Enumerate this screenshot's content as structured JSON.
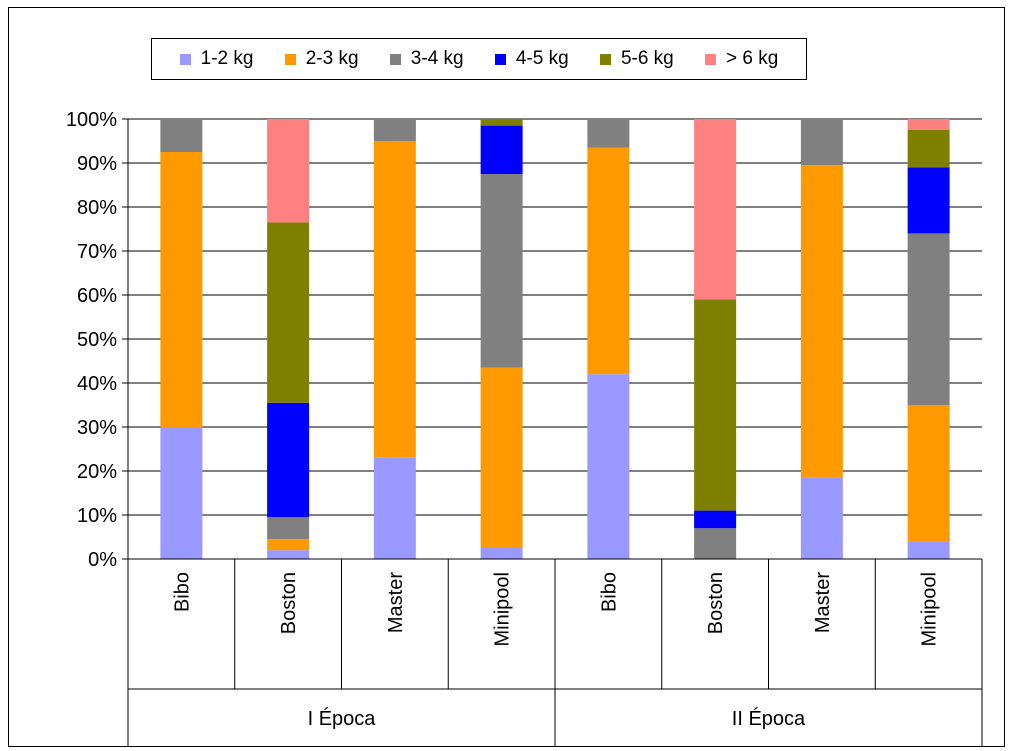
{
  "chart_data": {
    "type": "bar",
    "stacked": true,
    "percent": true,
    "groups": [
      {
        "label": "I Época",
        "categories": [
          "Bibo",
          "Boston",
          "Master",
          "Minipool"
        ]
      },
      {
        "label": "II Época",
        "categories": [
          "Bibo",
          "Boston",
          "Master",
          "Minipool"
        ]
      }
    ],
    "categories": [
      "Bibo",
      "Boston",
      "Master",
      "Minipool",
      "Bibo",
      "Boston",
      "Master",
      "Minipool"
    ],
    "series": [
      {
        "name": "1-2 kg",
        "color": "#9999FF",
        "values": [
          30,
          2,
          23,
          2.5,
          42,
          0,
          18.5,
          4
        ]
      },
      {
        "name": "2-3 kg",
        "color": "#FF9900",
        "values": [
          62.5,
          2.5,
          72,
          41,
          51.5,
          0,
          71,
          31
        ]
      },
      {
        "name": "3-4 kg",
        "color": "#808080",
        "values": [
          7.5,
          5,
          5,
          44,
          6.5,
          7,
          10.5,
          39
        ]
      },
      {
        "name": "4-5 kg",
        "color": "#0000FF",
        "values": [
          0,
          26,
          0,
          11,
          0,
          4,
          0,
          15
        ]
      },
      {
        "name": "5-6 kg",
        "color": "#808000",
        "values": [
          0,
          41,
          0,
          1.5,
          0,
          48,
          0,
          8.5
        ]
      },
      {
        "name": "> 6 kg",
        "color": "#FF8080",
        "values": [
          0,
          23.5,
          0,
          0,
          0,
          41,
          0,
          2.5
        ]
      }
    ],
    "ylim": [
      0,
      100
    ],
    "yticks": [
      "0%",
      "10%",
      "20%",
      "30%",
      "40%",
      "50%",
      "60%",
      "70%",
      "80%",
      "90%",
      "100%"
    ],
    "grid": true,
    "legend_position": "top"
  }
}
